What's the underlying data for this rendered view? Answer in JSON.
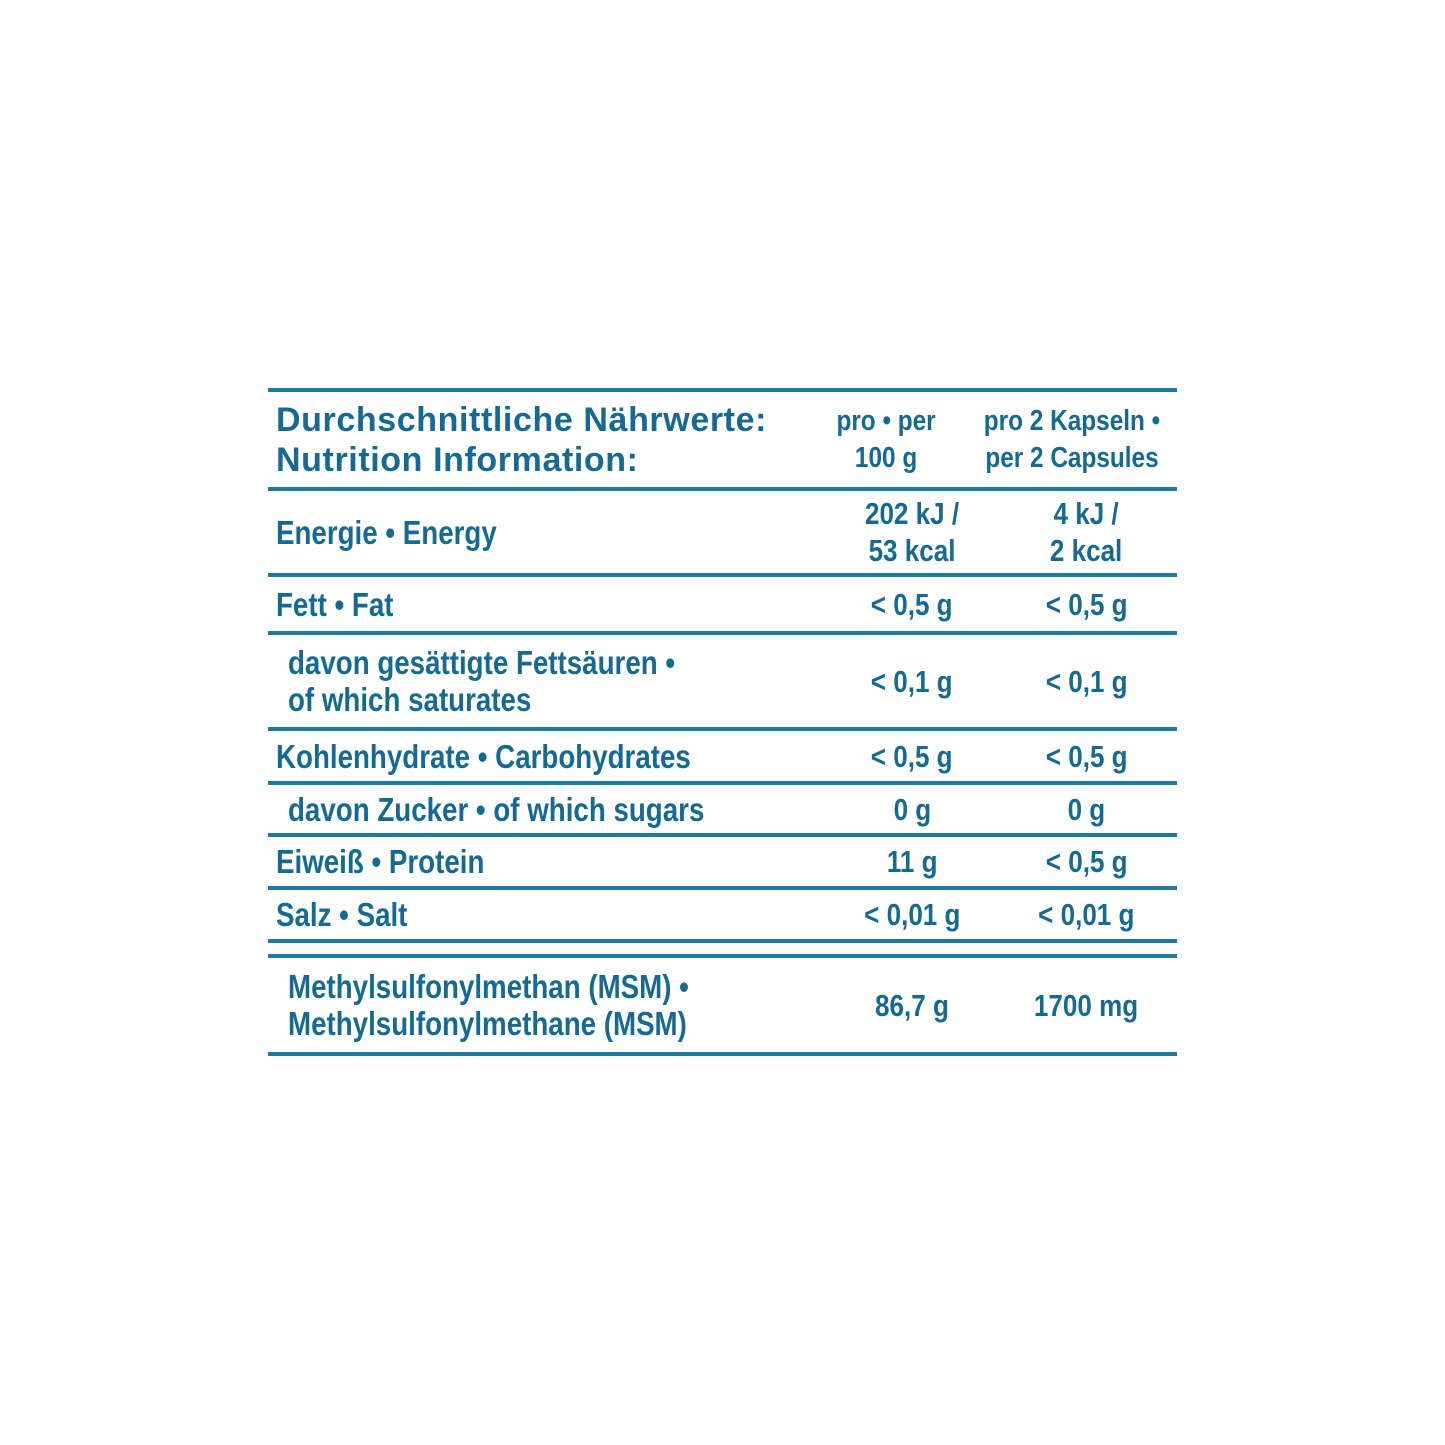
{
  "colors": {
    "text": "#156a93",
    "rule": "#1e7aa3",
    "background": "#ffffff"
  },
  "table": {
    "header": {
      "title": "Durchschnittliche Nährwerte:\nNutrition Information:",
      "col_per_100g": "pro • per\n100 g",
      "col_per_2_capsules": "pro 2 Kapseln •\nper 2 Capsules"
    },
    "rows": [
      {
        "label": "Energie • Energy",
        "per_100g": "202 kJ /\n53 kcal",
        "per_2_capsules": "4 kJ /\n2 kcal",
        "indent": false
      },
      {
        "label": "Fett • Fat",
        "per_100g": "< 0,5 g",
        "per_2_capsules": "< 0,5 g",
        "indent": false
      },
      {
        "label": "davon gesättigte Fettsäuren •\nof which saturates",
        "per_100g": "< 0,1 g",
        "per_2_capsules": "< 0,1 g",
        "indent": true
      },
      {
        "label": "Kohlenhydrate • Carbohydrates",
        "per_100g": "< 0,5 g",
        "per_2_capsules": "< 0,5 g",
        "indent": false
      },
      {
        "label": "davon Zucker • of which sugars",
        "per_100g": "0 g",
        "per_2_capsules": "0 g",
        "indent": true
      },
      {
        "label": "Eiweiß • Protein",
        "per_100g": "11 g",
        "per_2_capsules": "< 0,5 g",
        "indent": false
      },
      {
        "label": "Salz • Salt",
        "per_100g": "< 0,01 g",
        "per_2_capsules": "< 0,01 g",
        "indent": false
      },
      {
        "label": "Methylsulfonylmethan (MSM) •\nMethylsulfonylmethane (MSM)",
        "per_100g": "86,7 g",
        "per_2_capsules": "1700 mg",
        "indent": true
      }
    ]
  }
}
